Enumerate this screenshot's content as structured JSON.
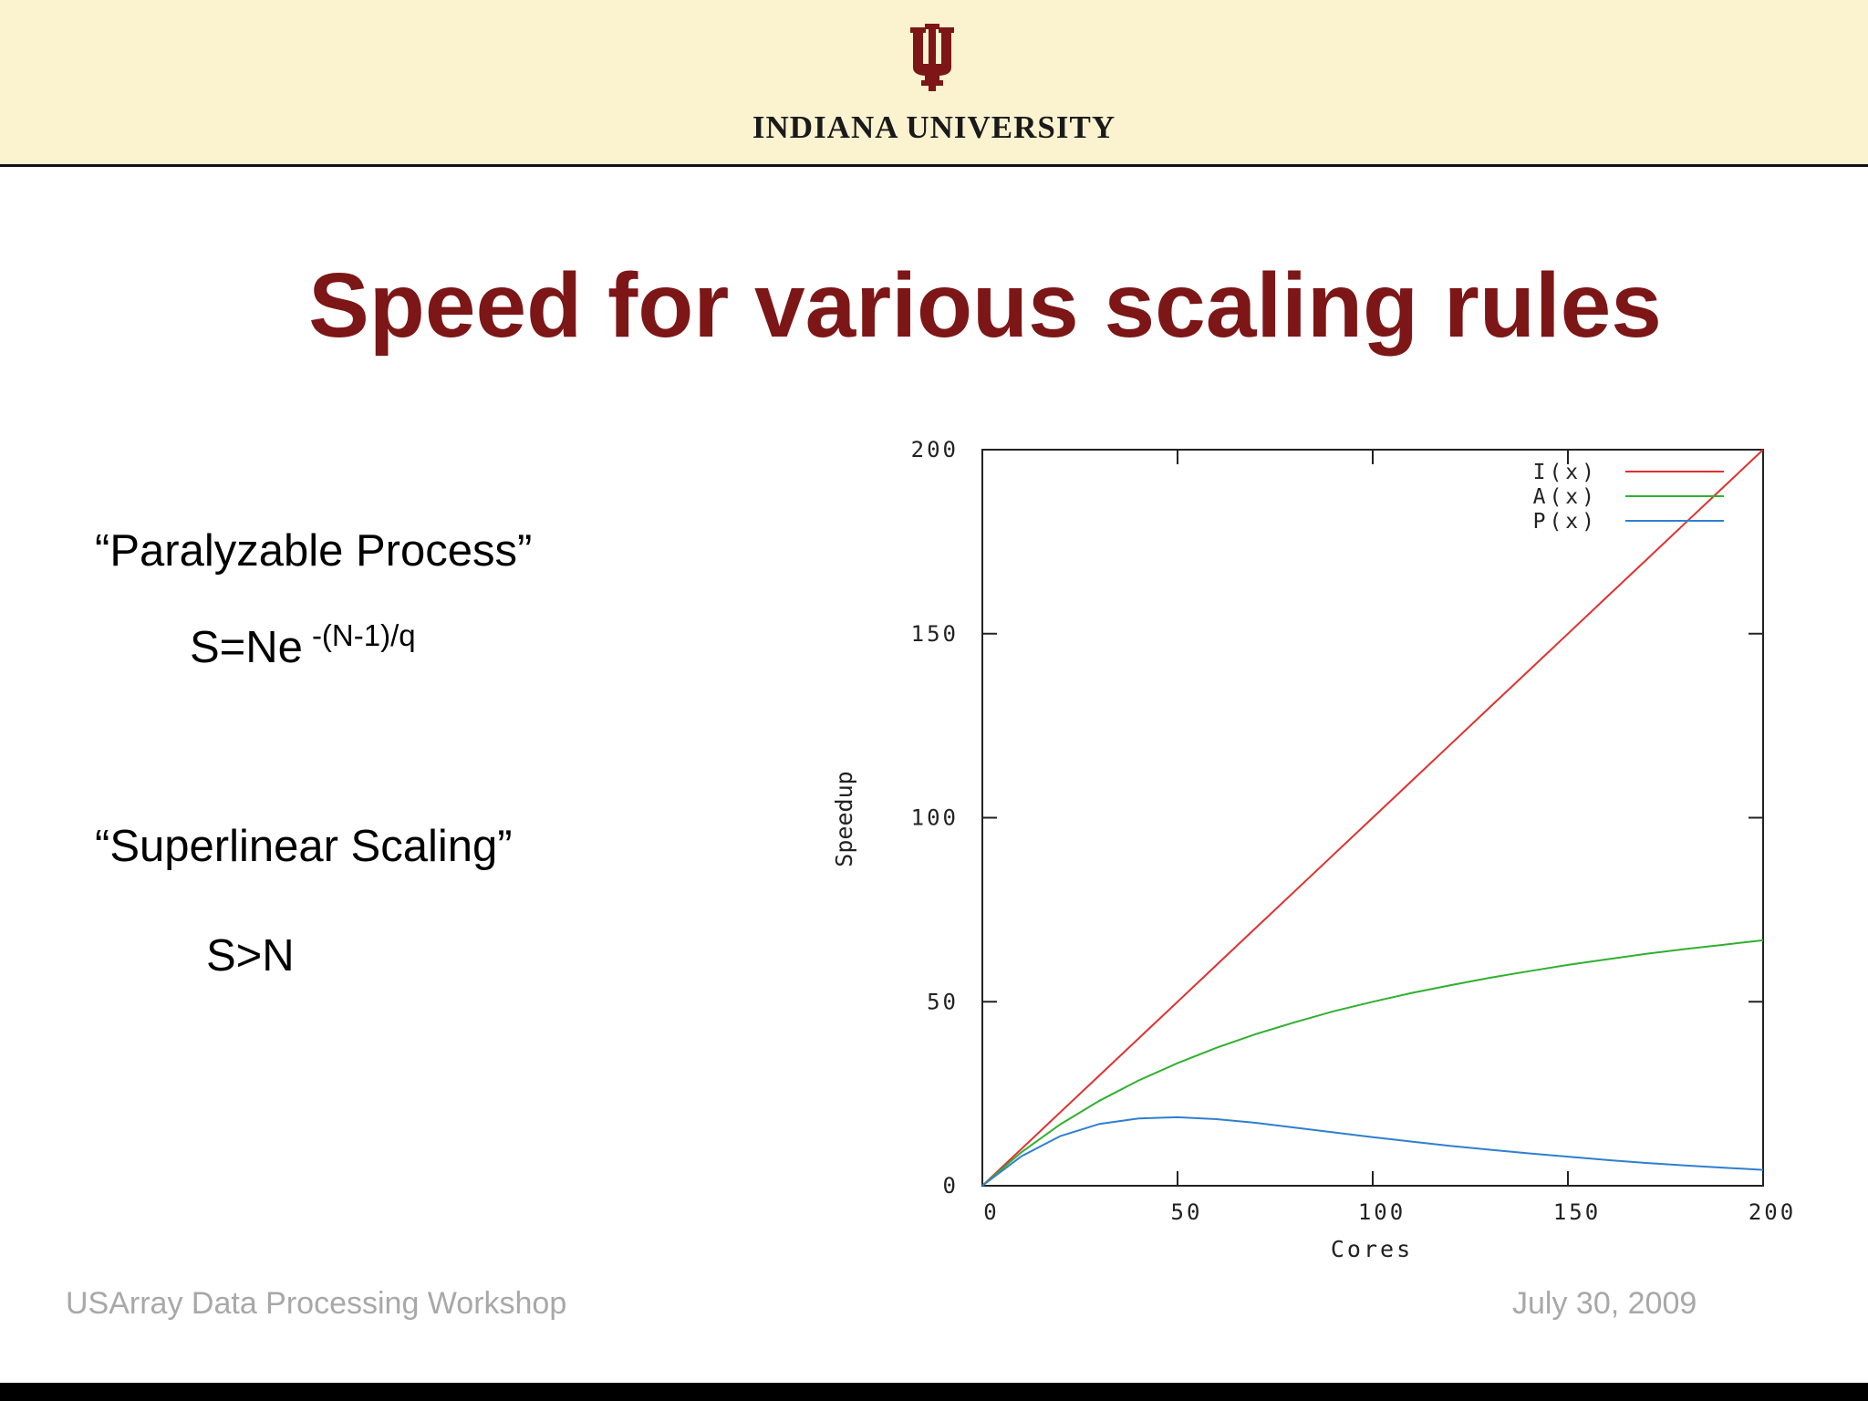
{
  "header": {
    "university": "INDIANA UNIVERSITY",
    "logo_icon": "iu-trident-icon",
    "logo_color": "#7d1616"
  },
  "slide": {
    "title": "Speed for various scaling rules",
    "title_color": "#7d1616",
    "paralyzable_heading": "“Paralyzable Process”",
    "paralyzable_formula_base": "S=Ne",
    "paralyzable_formula_exponent": "-(N-1)/q",
    "superlinear_heading": "“Superlinear Scaling”",
    "superlinear_formula": "S>N"
  },
  "footer": {
    "left": "USArray Data Processing Workshop",
    "right": "July 30, 2009"
  },
  "chart_data": {
    "type": "line",
    "title": "",
    "xlabel": "Cores",
    "ylabel": "Speedup",
    "xlim": [
      0,
      200
    ],
    "ylim": [
      0,
      200
    ],
    "xticks": [
      "0",
      "50",
      "100",
      "150",
      "200"
    ],
    "yticks": [
      "0",
      "50",
      "100",
      "150",
      "200"
    ],
    "grid": false,
    "legend_position": "top-right",
    "x": [
      0,
      10,
      20,
      30,
      40,
      50,
      60,
      70,
      80,
      90,
      100,
      110,
      120,
      130,
      140,
      150,
      160,
      170,
      180,
      190,
      200
    ],
    "series": [
      {
        "name": "I(x)",
        "color": "#e03030",
        "values": [
          0,
          10,
          20,
          30,
          40,
          50,
          60,
          70,
          80,
          90,
          100,
          110,
          120,
          130,
          140,
          150,
          160,
          170,
          180,
          190,
          200
        ]
      },
      {
        "name": "A(x)",
        "color": "#30b030",
        "values": [
          0,
          9.1,
          16.7,
          23.1,
          28.6,
          33.3,
          37.5,
          41.2,
          44.4,
          47.4,
          50.0,
          52.4,
          54.5,
          56.5,
          58.3,
          60.0,
          61.5,
          63.0,
          64.3,
          65.5,
          66.7
        ]
      },
      {
        "name": "P(x)",
        "color": "#2f7fd0",
        "values": [
          0,
          8.0,
          13.5,
          16.8,
          18.3,
          18.6,
          18.1,
          17.1,
          15.8,
          14.5,
          13.2,
          12.0,
          10.8,
          9.8,
          8.8,
          7.9,
          7.0,
          6.2,
          5.5,
          4.9,
          4.3
        ]
      }
    ]
  }
}
